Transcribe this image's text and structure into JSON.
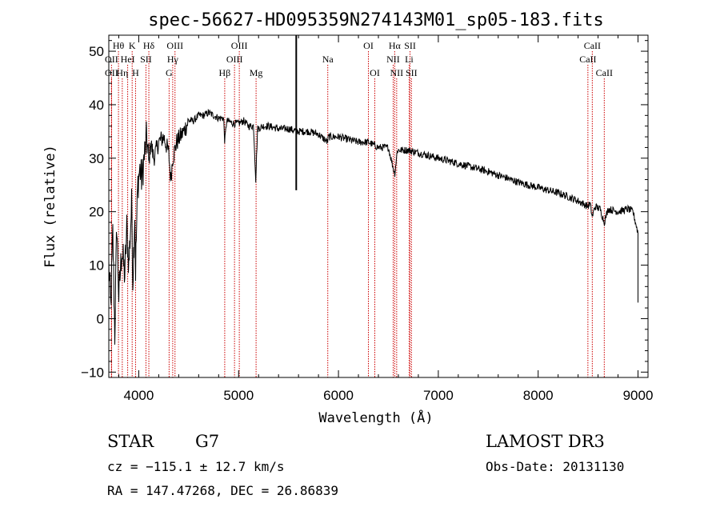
{
  "chart_data": {
    "type": "line",
    "title": "spec-56627-HD095359N274143M01_sp05-183.fits",
    "xlabel": "Wavelength (Å)",
    "ylabel": "Flux (relative)",
    "xlim": [
      3700,
      9100
    ],
    "ylim": [
      -11,
      53
    ],
    "xticks": [
      "4000",
      "5000",
      "6000",
      "7000",
      "8000",
      "9000"
    ],
    "yticks": [
      "−10",
      "0",
      "10",
      "20",
      "30",
      "40",
      "50"
    ],
    "xtick_values": [
      4000,
      5000,
      6000,
      7000,
      8000,
      9000
    ],
    "ytick_values": [
      -10,
      0,
      10,
      20,
      30,
      40,
      50
    ],
    "grid": false,
    "line_color": "#000000",
    "marker_color": "#cc0000",
    "spectrum_anchors": [
      [
        3700,
        10
      ],
      [
        3720,
        2
      ],
      [
        3740,
        16
      ],
      [
        3760,
        -3
      ],
      [
        3780,
        18
      ],
      [
        3800,
        4
      ],
      [
        3830,
        13
      ],
      [
        3860,
        8
      ],
      [
        3880,
        17
      ],
      [
        3900,
        10
      ],
      [
        3930,
        22
      ],
      [
        3940,
        7
      ],
      [
        3960,
        20
      ],
      [
        3968,
        9
      ],
      [
        3990,
        25
      ],
      [
        4010,
        28
      ],
      [
        4030,
        26
      ],
      [
        4060,
        31
      ],
      [
        4080,
        34
      ],
      [
        4101,
        29
      ],
      [
        4120,
        33
      ],
      [
        4150,
        30
      ],
      [
        4200,
        33
      ],
      [
        4250,
        34
      ],
      [
        4300,
        31
      ],
      [
        4320,
        26
      ],
      [
        4340,
        30
      ],
      [
        4380,
        33
      ],
      [
        4450,
        35
      ],
      [
        4500,
        37
      ],
      [
        4550,
        37
      ],
      [
        4600,
        38
      ],
      [
        4650,
        38
      ],
      [
        4700,
        38.5
      ],
      [
        4750,
        38
      ],
      [
        4800,
        37.5
      ],
      [
        4850,
        37.5
      ],
      [
        4861,
        33
      ],
      [
        4880,
        37
      ],
      [
        4950,
        36.5
      ],
      [
        5000,
        36.5
      ],
      [
        5050,
        37
      ],
      [
        5100,
        36
      ],
      [
        5150,
        36
      ],
      [
        5172,
        26
      ],
      [
        5190,
        35.5
      ],
      [
        5250,
        36
      ],
      [
        5300,
        36
      ],
      [
        5400,
        35.5
      ],
      [
        5500,
        35.5
      ],
      [
        5600,
        35
      ],
      [
        5700,
        35
      ],
      [
        5800,
        34.5
      ],
      [
        5890,
        33
      ],
      [
        5900,
        34
      ],
      [
        6000,
        34
      ],
      [
        6100,
        33.5
      ],
      [
        6200,
        33
      ],
      [
        6300,
        33
      ],
      [
        6400,
        32
      ],
      [
        6500,
        32
      ],
      [
        6563,
        27
      ],
      [
        6590,
        31.5
      ],
      [
        6700,
        31.5
      ],
      [
        6800,
        31
      ],
      [
        6900,
        30.5
      ],
      [
        7000,
        30
      ],
      [
        7100,
        29.5
      ],
      [
        7200,
        29
      ],
      [
        7300,
        28.5
      ],
      [
        7400,
        28
      ],
      [
        7500,
        27.5
      ],
      [
        7600,
        26.8
      ],
      [
        7700,
        26.2
      ],
      [
        7800,
        25.5
      ],
      [
        7900,
        25
      ],
      [
        8000,
        24.5
      ],
      [
        8100,
        24
      ],
      [
        8200,
        23.5
      ],
      [
        8300,
        22.8
      ],
      [
        8400,
        22
      ],
      [
        8498,
        21
      ],
      [
        8520,
        21.5
      ],
      [
        8542,
        19
      ],
      [
        8570,
        21
      ],
      [
        8620,
        20.5
      ],
      [
        8662,
        18
      ],
      [
        8700,
        20.5
      ],
      [
        8800,
        20
      ],
      [
        8900,
        20.5
      ],
      [
        8950,
        20
      ],
      [
        9000,
        16
      ],
      [
        9000,
        3
      ]
    ],
    "spectrum_spikes": [
      [
        5577,
        53
      ],
      [
        5577,
        24
      ]
    ],
    "line_markers": [
      {
        "label": "Hθ",
        "x": 3797,
        "row": 1
      },
      {
        "label": "OII",
        "x": 3727,
        "row": 2
      },
      {
        "label": "OII",
        "x": 3727,
        "row": 3
      },
      {
        "label": "Hη",
        "x": 3835,
        "row": 3
      },
      {
        "label": "K",
        "x": 3934,
        "row": 1
      },
      {
        "label": "HeI",
        "x": 3889,
        "row": 2
      },
      {
        "label": "SII",
        "x": 4072,
        "row": 2
      },
      {
        "label": "H",
        "x": 3968,
        "row": 3
      },
      {
        "label": "Hδ",
        "x": 4101,
        "row": 1
      },
      {
        "label": "OIII",
        "x": 4363,
        "row": 1
      },
      {
        "label": "Hγ",
        "x": 4340,
        "row": 2
      },
      {
        "label": "G",
        "x": 4304,
        "row": 3
      },
      {
        "label": "Hβ",
        "x": 4861,
        "row": 3
      },
      {
        "label": "OIII",
        "x": 5007,
        "row": 1
      },
      {
        "label": "OIII",
        "x": 4959,
        "row": 2
      },
      {
        "label": "Mg",
        "x": 5175,
        "row": 3
      },
      {
        "label": "Na",
        "x": 5893,
        "row": 2
      },
      {
        "label": "OI",
        "x": 6300,
        "row": 1
      },
      {
        "label": "OI",
        "x": 6364,
        "row": 3
      },
      {
        "label": "Hα",
        "x": 6563,
        "row": 1
      },
      {
        "label": "NII",
        "x": 6548,
        "row": 2
      },
      {
        "label": "NII",
        "x": 6583,
        "row": 3
      },
      {
        "label": "SII",
        "x": 6717,
        "row": 1
      },
      {
        "label": "Li",
        "x": 6708,
        "row": 2
      },
      {
        "label": "SII",
        "x": 6731,
        "row": 3
      },
      {
        "label": "CaII",
        "x": 8542,
        "row": 1
      },
      {
        "label": "CaII",
        "x": 8498,
        "row": 2
      },
      {
        "label": "CaII",
        "x": 8662,
        "row": 3
      }
    ]
  },
  "info": {
    "star_label": "STAR",
    "spectral_type": "G7",
    "survey": "LAMOST DR3",
    "cz_text": "cz = −115.1 ± 12.7 km/s",
    "obs_date": "Obs-Date: 20131130",
    "radec_text": "RA = 147.47268, DEC =  26.86839"
  }
}
